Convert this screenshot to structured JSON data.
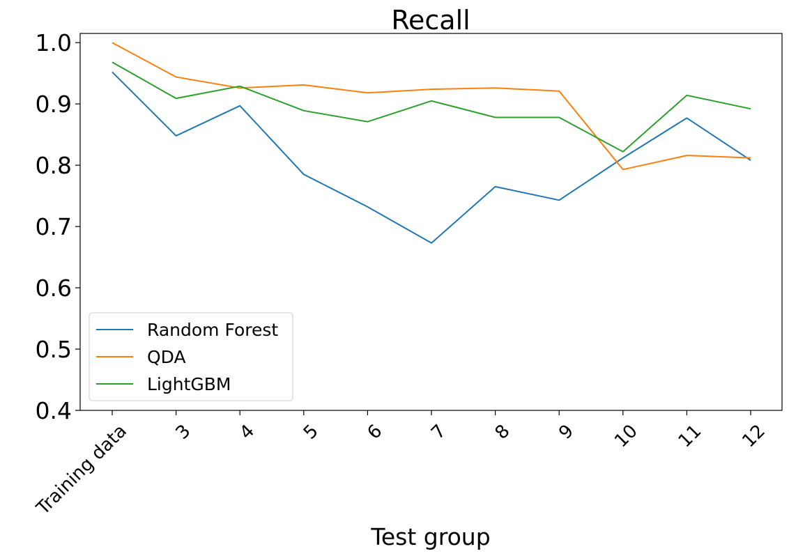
{
  "chart_data": {
    "type": "line",
    "title": "Recall",
    "xlabel": "Test group",
    "ylabel": "",
    "categories": [
      "Training data",
      "3",
      "4",
      "5",
      "6",
      "7",
      "8",
      "9",
      "10",
      "11",
      "12"
    ],
    "ylim": [
      0.4,
      1.015
    ],
    "yticks": [
      "0.4",
      "0.5",
      "0.6",
      "0.7",
      "0.8",
      "0.9",
      "1.0"
    ],
    "grid": false,
    "legend_position": "lower-left",
    "series": [
      {
        "name": "Random Forest",
        "color": "#1f77b4",
        "values": [
          0.952,
          0.848,
          0.897,
          0.785,
          0.732,
          0.673,
          0.765,
          0.743,
          0.812,
          0.877,
          0.808
        ]
      },
      {
        "name": "QDA",
        "color": "#ff7f0e",
        "values": [
          1.0,
          0.944,
          0.926,
          0.931,
          0.918,
          0.924,
          0.926,
          0.921,
          0.793,
          0.816,
          0.812
        ]
      },
      {
        "name": "LightGBM",
        "color": "#2ca02c",
        "values": [
          0.968,
          0.909,
          0.929,
          0.889,
          0.871,
          0.905,
          0.878,
          0.878,
          0.822,
          0.914,
          0.892
        ]
      }
    ]
  }
}
